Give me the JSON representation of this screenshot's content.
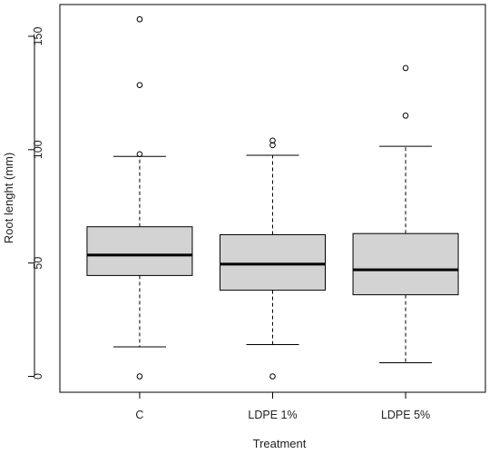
{
  "chart_data": {
    "type": "boxplot",
    "title": "",
    "xlabel": "Treatment",
    "ylabel": "Root lenght (mm)",
    "ylim": [
      -7,
      164
    ],
    "yticks": [
      0,
      50,
      100,
      150
    ],
    "ytick_labels": [
      "0",
      "50",
      "100",
      "150"
    ],
    "grid": false,
    "legend": "none",
    "colors": {
      "box_fill": "#d3d3d3",
      "stroke": "#000000",
      "median": "#000000"
    },
    "categories": [
      "C",
      "LDPE 1%",
      "LDPE 5%"
    ],
    "boxes": [
      {
        "category": "C",
        "whisker_low": 13,
        "q1": 44.5,
        "median": 53.5,
        "q3": 66,
        "whisker_high": 97,
        "outliers": [
          0,
          98,
          128.5,
          157.5
        ]
      },
      {
        "category": "LDPE 1%",
        "whisker_low": 14,
        "q1": 38,
        "median": 49.5,
        "q3": 62.5,
        "whisker_high": 97.5,
        "outliers": [
          0,
          102,
          104
        ]
      },
      {
        "category": "LDPE 5%",
        "whisker_low": 6,
        "q1": 36,
        "median": 47,
        "q3": 63,
        "whisker_high": 101.5,
        "outliers": [
          115,
          136
        ]
      }
    ]
  }
}
